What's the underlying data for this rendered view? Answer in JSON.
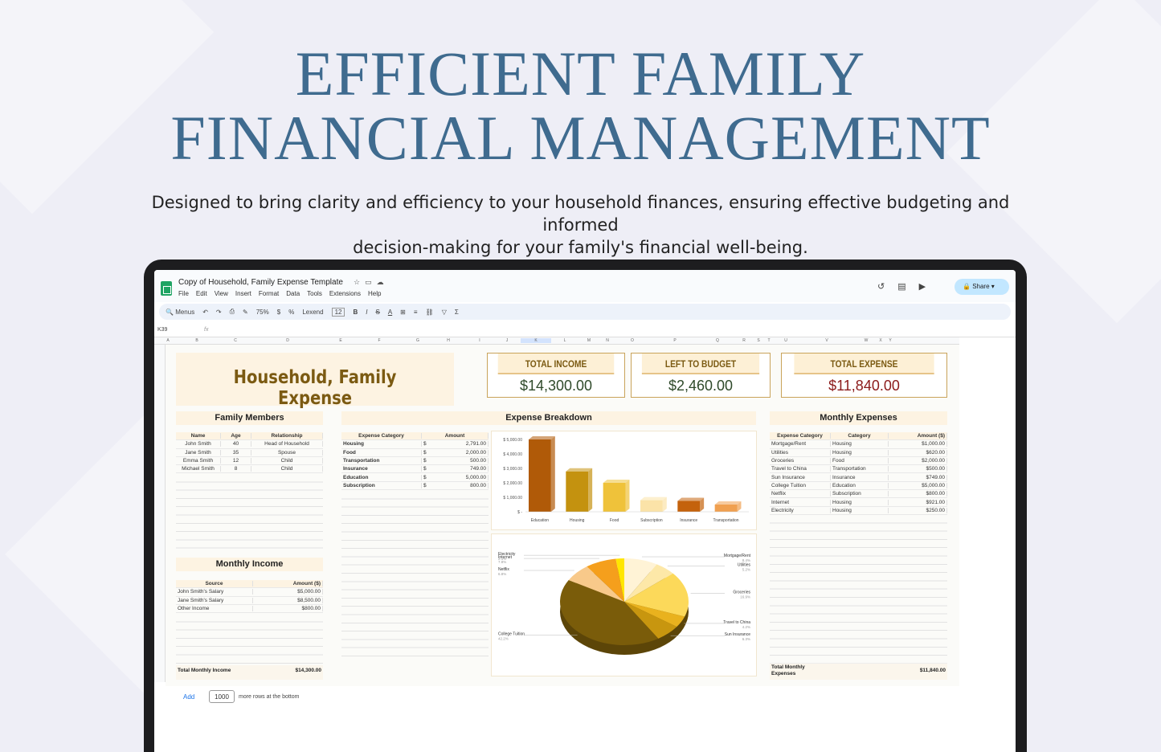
{
  "hero": {
    "title_line1": "EFFICIENT FAMILY",
    "title_line2": "FINANCIAL MANAGEMENT",
    "subtitle_line1": "Designed to bring clarity and efficiency to your household finances, ensuring effective budgeting and informed",
    "subtitle_line2": "decision-making for your family's financial well-being."
  },
  "app": {
    "doc_title": "Copy of Household, Family Expense Template",
    "menus": [
      "File",
      "Edit",
      "View",
      "Insert",
      "Format",
      "Data",
      "Tools",
      "Extensions",
      "Help"
    ],
    "share_label": "Share",
    "search_menus": "Menus",
    "zoom": "75%",
    "font": "Lexend",
    "font_size": "12",
    "cell_ref": "K39",
    "fx": "fx",
    "columns": [
      "A",
      "B",
      "C",
      "D",
      "E",
      "F",
      "G",
      "H",
      "I",
      "J",
      "K",
      "L",
      "M",
      "N",
      "O",
      "P",
      "Q",
      "R",
      "S",
      "T",
      "U",
      "V",
      "W",
      "X",
      "Y"
    ],
    "add_label": "Add",
    "add_rows_value": "1000",
    "add_rows_text": "more rows at the bottom"
  },
  "sheet": {
    "title": "Household, Family Expense",
    "kpis": [
      {
        "label": "TOTAL INCOME",
        "value": "$14,300.00",
        "color": "#2f4a2a"
      },
      {
        "label": "LEFT TO BUDGET",
        "value": "$2,460.00",
        "color": "#2f4a2a"
      },
      {
        "label": "TOTAL EXPENSE",
        "value": "$11,840.00",
        "color": "#8b1a1a"
      }
    ],
    "family": {
      "title": "Family Members",
      "headers": [
        "Name",
        "Age",
        "Relationship"
      ],
      "rows": [
        [
          "John Smith",
          "40",
          "Head of Household"
        ],
        [
          "Jane Smith",
          "35",
          "Spouse"
        ],
        [
          "Emma Smith",
          "12",
          "Child"
        ],
        [
          "Michael Smith",
          "8",
          "Child"
        ]
      ]
    },
    "income": {
      "title": "Monthly Income",
      "headers": [
        "Source",
        "Amount ($)"
      ],
      "rows": [
        [
          "John Smith's Salary",
          "$5,000.00"
        ],
        [
          "Jane Smith's Salary",
          "$8,500.00"
        ],
        [
          "Other Income",
          "$800.00"
        ]
      ],
      "total_label": "Total Monthly Income",
      "total_value": "$14,300.00"
    },
    "breakdown": {
      "title": "Expense Breakdown",
      "headers": [
        "Expense Category",
        "Amount"
      ],
      "rows": [
        [
          "Housing",
          "$",
          "2,791.00"
        ],
        [
          "Food",
          "$",
          "2,000.00"
        ],
        [
          "Transportation",
          "$",
          "500.00"
        ],
        [
          "Insurance",
          "$",
          "749.00"
        ],
        [
          "Education",
          "$",
          "5,000.00"
        ],
        [
          "Subscription",
          "$",
          "800.00"
        ]
      ]
    },
    "monthly": {
      "title": "Monthly Expenses",
      "headers": [
        "Expense Category",
        "Category",
        "Amount ($)"
      ],
      "rows": [
        [
          "Mortgage/Rent",
          "Housing",
          "$1,000.00"
        ],
        [
          "Utilities",
          "Housing",
          "$620.00"
        ],
        [
          "Groceries",
          "Food",
          "$2,000.00"
        ],
        [
          "Travel to China",
          "Transportation",
          "$500.00"
        ],
        [
          "Sun Insurance",
          "Insurance",
          "$749.00"
        ],
        [
          "College Tuition",
          "Education",
          "$5,000.00"
        ],
        [
          "Netflix",
          "Subscription",
          "$800.00"
        ],
        [
          "Internet",
          "Housing",
          "$921.00"
        ],
        [
          "Electricity",
          "Housing",
          "$250.00"
        ]
      ],
      "total_label_1": "Total Monthly",
      "total_label_2": "Expenses",
      "total_value": "$11,840.00"
    }
  },
  "chart_data": [
    {
      "type": "bar",
      "categories": [
        "Education",
        "Housing",
        "Food",
        "Subscription",
        "Insurance",
        "Transportation"
      ],
      "values": [
        5000,
        2791,
        2000,
        800,
        749,
        500
      ],
      "colors": [
        "#b05a08",
        "#c4920f",
        "#efc23a",
        "#fbe3a8",
        "#c4620c",
        "#f0a050"
      ],
      "ylim": [
        0,
        5000
      ],
      "yticks": [
        "$ 5,000.00",
        "$ 4,000.00",
        "$ 3,000.00",
        "$ 2,000.00",
        "$ 1,000.00",
        "$ -"
      ]
    },
    {
      "type": "pie",
      "labels": [
        "Mortgage/Rent",
        "Utilities",
        "Groceries",
        "Travel to China",
        "Sun Insurance",
        "College Tuition",
        "Netflix",
        "Internet",
        "Electricity"
      ],
      "values": [
        1000,
        620,
        2000,
        500,
        749,
        5000,
        800,
        921,
        250
      ],
      "percents": [
        "8.4%",
        "5.2%",
        "16.9%",
        "4.2%",
        "6.3%",
        "42.2%",
        "6.8%",
        "7.8%",
        "2.1%"
      ],
      "colors": [
        "#fff3d6",
        "#fde8a8",
        "#fcd95a",
        "#e9b21e",
        "#c8960f",
        "#7a5c0a",
        "#f8c98a",
        "#f59f1c",
        "#ffe600"
      ]
    }
  ]
}
